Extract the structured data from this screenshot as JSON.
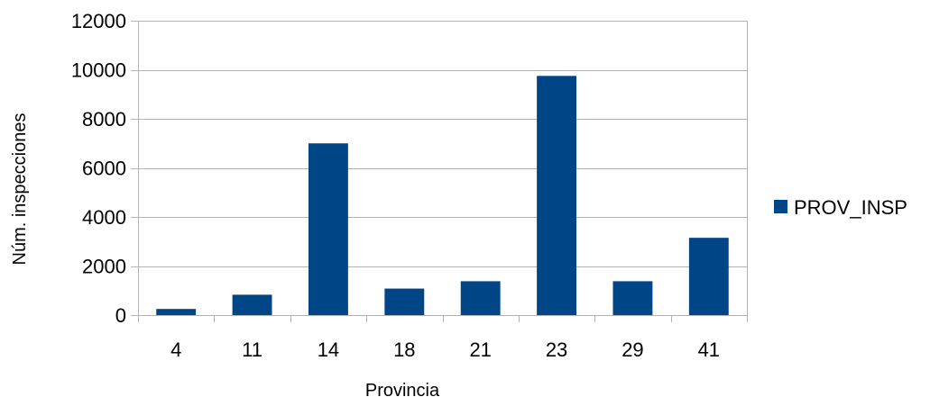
{
  "chart_data": {
    "type": "bar",
    "xlabel": "Provincia",
    "ylabel": "Núm. inspecciones",
    "categories": [
      "4",
      "11",
      "14",
      "18",
      "21",
      "23",
      "29",
      "41"
    ],
    "series": [
      {
        "name": "PROV_INSP",
        "values": [
          250,
          830,
          7000,
          1080,
          1380,
          9750,
          1380,
          3150
        ],
        "color": "#004586"
      }
    ],
    "ylim": [
      0,
      12000
    ],
    "yticks": [
      0,
      2000,
      4000,
      6000,
      8000,
      10000,
      12000
    ],
    "grid": true,
    "legend": "right"
  }
}
